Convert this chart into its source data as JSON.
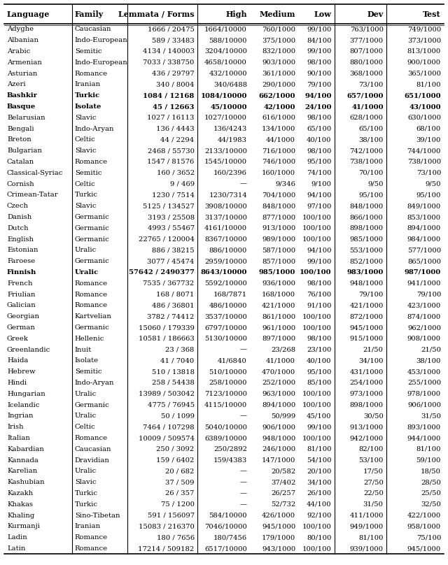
{
  "headers": [
    "Language",
    "Family",
    "Lemmata / Forms",
    "High",
    "Medium",
    "Low",
    "Dev",
    "Test"
  ],
  "rows": [
    [
      "Adyghe",
      "Caucasian",
      "1666 / 20475",
      "1664/10000",
      "760/1000",
      "99/100",
      "763/1000",
      "749/1000"
    ],
    [
      "Albanian",
      "Indo-European",
      "589 / 33483",
      "588/10000",
      "375/1000",
      "84/100",
      "377/1000",
      "373/1000"
    ],
    [
      "Arabic",
      "Semitic",
      "4134 / 140003",
      "3204/10000",
      "832/1000",
      "99/100",
      "807/1000",
      "813/1000"
    ],
    [
      "Armenian",
      "Indo-European",
      "7033 / 338750",
      "4658/10000",
      "903/1000",
      "98/100",
      "880/1000",
      "900/1000"
    ],
    [
      "Asturian",
      "Romance",
      "436 / 29797",
      "432/10000",
      "361/1000",
      "90/100",
      "368/1000",
      "365/1000"
    ],
    [
      "Azeri",
      "Iranian",
      "340 / 8004",
      "340/6488",
      "290/1000",
      "79/100",
      "73/100",
      "81/100"
    ],
    [
      "Bashkir",
      "Turkic",
      "1084 / 12168",
      "1084/10000",
      "662/1000",
      "94/100",
      "657/1000",
      "651/1000"
    ],
    [
      "Basque",
      "Isolate",
      "45 / 12663",
      "45/10000",
      "42/1000",
      "24/100",
      "41/1000",
      "43/1000"
    ],
    [
      "Belarusian",
      "Slavic",
      "1027 / 16113",
      "1027/10000",
      "616/1000",
      "98/100",
      "628/1000",
      "630/1000"
    ],
    [
      "Bengali",
      "Indo-Aryan",
      "136 / 4443",
      "136/4243",
      "134/1000",
      "65/100",
      "65/100",
      "68/100"
    ],
    [
      "Breton",
      "Celtic",
      "44 / 2294",
      "44/1983",
      "44/1000",
      "40/100",
      "38/100",
      "39/100"
    ],
    [
      "Bulgarian",
      "Slavic",
      "2468 / 55730",
      "2133/10000",
      "716/1000",
      "98/100",
      "742/1000",
      "744/1000"
    ],
    [
      "Catalan",
      "Romance",
      "1547 / 81576",
      "1545/10000",
      "746/1000",
      "95/100",
      "738/1000",
      "738/1000"
    ],
    [
      "Classical-Syriac",
      "Semitic",
      "160 / 3652",
      "160/2396",
      "160/1000",
      "74/100",
      "70/100",
      "73/100"
    ],
    [
      "Cornish",
      "Celtic",
      "9 / 469",
      "—",
      "9/346",
      "9/100",
      "9/50",
      "9/50"
    ],
    [
      "Crimean-Tatar",
      "Turkic",
      "1230 / 7514",
      "1230/7314",
      "704/1000",
      "94/100",
      "95/100",
      "95/100"
    ],
    [
      "Czech",
      "Slavic",
      "5125 / 134527",
      "3908/10000",
      "848/1000",
      "97/100",
      "848/1000",
      "849/1000"
    ],
    [
      "Danish",
      "Germanic",
      "3193 / 25508",
      "3137/10000",
      "877/1000",
      "100/100",
      "866/1000",
      "853/1000"
    ],
    [
      "Dutch",
      "Germanic",
      "4993 / 55467",
      "4161/10000",
      "913/1000",
      "100/100",
      "898/1000",
      "894/1000"
    ],
    [
      "English",
      "Germanic",
      "22765 / 120004",
      "8367/10000",
      "989/1000",
      "100/100",
      "985/1000",
      "984/1000"
    ],
    [
      "Estonian",
      "Uralic",
      "886 / 38215",
      "886/10000",
      "587/1000",
      "94/100",
      "553/1000",
      "577/1000"
    ],
    [
      "Faroese",
      "Germanic",
      "3077 / 45474",
      "2959/10000",
      "857/1000",
      "99/100",
      "852/1000",
      "865/1000"
    ],
    [
      "Finnish",
      "Uralic",
      "57642 / 2490377",
      "8643/10000",
      "985/1000",
      "100/100",
      "983/1000",
      "987/1000"
    ],
    [
      "French",
      "Romance",
      "7535 / 367732",
      "5592/10000",
      "936/1000",
      "98/100",
      "948/1000",
      "941/1000"
    ],
    [
      "Friulian",
      "Romance",
      "168 / 8071",
      "168/7871",
      "168/1000",
      "76/100",
      "79/100",
      "79/100"
    ],
    [
      "Galician",
      "Romance",
      "486 / 36801",
      "486/10000",
      "421/1000",
      "91/100",
      "421/1000",
      "423/1000"
    ],
    [
      "Georgian",
      "Kartvelian",
      "3782 / 74412",
      "3537/10000",
      "861/1000",
      "100/100",
      "872/1000",
      "874/1000"
    ],
    [
      "German",
      "Germanic",
      "15060 / 179339",
      "6797/10000",
      "961/1000",
      "100/100",
      "945/1000",
      "962/1000"
    ],
    [
      "Greek",
      "Hellenic",
      "10581 / 186663",
      "5130/10000",
      "897/1000",
      "98/100",
      "915/1000",
      "908/1000"
    ],
    [
      "Greenlandic",
      "Inuit",
      "23 / 368",
      "—",
      "23/268",
      "23/100",
      "21/50",
      "21/50"
    ],
    [
      "Haida",
      "Isolate",
      "41 / 7040",
      "41/6840",
      "41/1000",
      "40/100",
      "34/100",
      "38/100"
    ],
    [
      "Hebrew",
      "Semitic",
      "510 / 13818",
      "510/10000",
      "470/1000",
      "95/100",
      "431/1000",
      "453/1000"
    ],
    [
      "Hindi",
      "Indo-Aryan",
      "258 / 54438",
      "258/10000",
      "252/1000",
      "85/100",
      "254/1000",
      "255/1000"
    ],
    [
      "Hungarian",
      "Uralic",
      "13989 / 503042",
      "7123/10000",
      "963/1000",
      "100/100",
      "973/1000",
      "978/1000"
    ],
    [
      "Icelandic",
      "Germanic",
      "4775 / 76945",
      "4115/10000",
      "894/1000",
      "100/100",
      "898/1000",
      "906/1000"
    ],
    [
      "Ingrian",
      "Uralic",
      "50 / 1099",
      "—",
      "50/999",
      "45/100",
      "30/50",
      "31/50"
    ],
    [
      "Irish",
      "Celtic",
      "7464 / 107298",
      "5040/10000",
      "906/1000",
      "99/100",
      "913/1000",
      "893/1000"
    ],
    [
      "Italian",
      "Romance",
      "10009 / 509574",
      "6389/10000",
      "948/1000",
      "100/100",
      "942/1000",
      "944/1000"
    ],
    [
      "Kabardian",
      "Caucasian",
      "250 / 3092",
      "250/2892",
      "246/1000",
      "81/100",
      "82/100",
      "81/100"
    ],
    [
      "Kannada",
      "Dravidian",
      "159 / 6402",
      "159/4383",
      "147/1000",
      "54/100",
      "53/100",
      "59/100"
    ],
    [
      "Karelian",
      "Uralic",
      "20 / 682",
      "—",
      "20/582",
      "20/100",
      "17/50",
      "18/50"
    ],
    [
      "Kashubian",
      "Slavic",
      "37 / 509",
      "—",
      "37/402",
      "34/100",
      "27/50",
      "28/50"
    ],
    [
      "Kazakh",
      "Turkic",
      "26 / 357",
      "—",
      "26/257",
      "26/100",
      "22/50",
      "25/50"
    ],
    [
      "Khakas",
      "Turkic",
      "75 / 1200",
      "—",
      "52/732",
      "44/100",
      "31/50",
      "32/50"
    ],
    [
      "Khaling",
      "Sino-Tibetan",
      "591 / 156097",
      "584/10000",
      "426/1000",
      "92/100",
      "411/1000",
      "422/1000"
    ],
    [
      "Kurmanji",
      "Iranian",
      "15083 / 216370",
      "7046/10000",
      "945/1000",
      "100/100",
      "949/1000",
      "958/1000"
    ],
    [
      "Ladin",
      "Romance",
      "180 / 7656",
      "180/7456",
      "179/1000",
      "80/100",
      "81/100",
      "75/100"
    ],
    [
      "Latin",
      "Romance",
      "17214 / 509182",
      "6517/10000",
      "943/1000",
      "100/100",
      "939/1000",
      "945/1000"
    ]
  ],
  "header_aligns": [
    "left",
    "left",
    "right",
    "right",
    "right",
    "right",
    "right",
    "right"
  ],
  "data_aligns": [
    "left",
    "left",
    "right",
    "right",
    "right",
    "right",
    "right",
    "right"
  ],
  "bold_rows": [
    6,
    7,
    22
  ],
  "separator_cols": [
    1,
    2,
    3,
    6,
    7
  ],
  "font_size": 7.2,
  "header_font_size": 8.0,
  "fig_width": 6.4,
  "fig_height": 8.08
}
